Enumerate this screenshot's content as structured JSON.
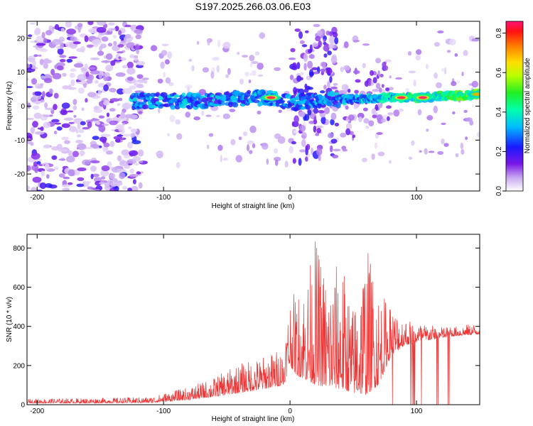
{
  "title": "S197.2025.266.03.06.E03",
  "chart_data": [
    {
      "type": "heatmap",
      "xlabel": "Height of straight line (km)",
      "ylabel": "Frequency (Hz)",
      "xlim": [
        -208,
        150
      ],
      "ylim": [
        -25,
        25
      ],
      "x_ticks": [
        -200,
        -100,
        0,
        100
      ],
      "y_ticks": [
        -20,
        -10,
        0,
        10,
        20
      ],
      "colorbar": {
        "label": "Normalized spectral amplitude",
        "range": [
          0,
          0.86
        ],
        "ticks": [
          0.0,
          0.2,
          0.4,
          0.6,
          0.8
        ]
      },
      "ridge": {
        "description": "dominant frequency band",
        "points": [
          [
            -125,
            1.5
          ],
          [
            -100,
            1.5
          ],
          [
            -75,
            1.5
          ],
          [
            -50,
            2
          ],
          [
            -25,
            2.5
          ],
          [
            -10,
            2
          ],
          [
            0,
            1
          ],
          [
            25,
            2
          ],
          [
            50,
            2
          ],
          [
            75,
            2.5
          ],
          [
            100,
            2.5
          ],
          [
            125,
            3
          ],
          [
            150,
            3.5
          ]
        ]
      },
      "peak_amplitude_regions": [
        {
          "height_km": -15,
          "frequency_hz": 2.5,
          "amplitude": 0.85
        },
        {
          "height_km": 88,
          "frequency_hz": 2.5,
          "amplitude": 0.85
        },
        {
          "height_km": 105,
          "frequency_hz": 2.5,
          "amplitude": 0.86
        },
        {
          "height_km": 148,
          "frequency_hz": 3.5,
          "amplitude": 0.7
        }
      ]
    },
    {
      "type": "line",
      "xlabel": "Height of straight line (km)",
      "ylabel": "SNR (10 * v/v)",
      "xlim": [
        -208,
        150
      ],
      "ylim": [
        0,
        870
      ],
      "x_ticks": [
        -200,
        -100,
        0,
        100
      ],
      "y_ticks": [
        0,
        200,
        400,
        600,
        800
      ],
      "line_color": "#ee3333",
      "envelope": {
        "x": [
          -208,
          -150,
          -110,
          -100,
          -80,
          -60,
          -40,
          -20,
          -5,
          0,
          5,
          15,
          20,
          30,
          40,
          50,
          60,
          70,
          80,
          90,
          100,
          110,
          120,
          130,
          140,
          150
        ],
        "base": [
          8,
          8,
          10,
          15,
          25,
          40,
          60,
          80,
          100,
          200,
          150,
          120,
          100,
          90,
          80,
          60,
          50,
          100,
          250,
          300,
          320,
          330,
          340,
          350,
          355,
          360
        ],
        "peak": [
          30,
          35,
          40,
          60,
          90,
          140,
          210,
          250,
          300,
          580,
          560,
          700,
          860,
          650,
          760,
          500,
          840,
          600,
          500,
          450,
          420,
          410,
          400,
          400,
          410,
          420
        ]
      }
    }
  ]
}
